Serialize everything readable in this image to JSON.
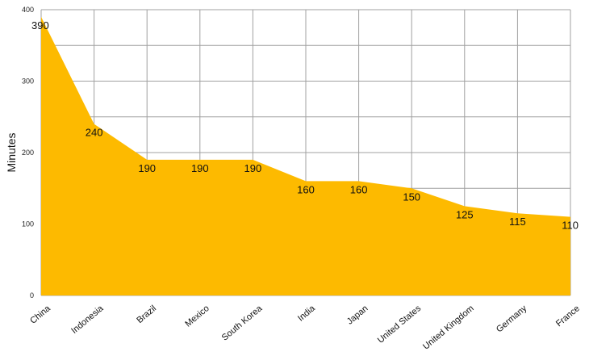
{
  "chart_data": {
    "type": "area",
    "categories": [
      "China",
      "Indonesia",
      "Brazil",
      "Mexico",
      "South Korea",
      "India",
      "Japan",
      "United States",
      "United Kingdom",
      "Germany",
      "France"
    ],
    "values": [
      390,
      240,
      190,
      190,
      190,
      160,
      160,
      150,
      125,
      115,
      110
    ],
    "data_labels": [
      "390",
      "240",
      "190",
      "190",
      "190",
      "160",
      "160",
      "150",
      "125",
      "115",
      "110"
    ],
    "title": "",
    "xlabel": "",
    "ylabel": "Minutes",
    "ylim": [
      0,
      400
    ],
    "yticks": [
      0,
      100,
      200,
      300,
      400
    ],
    "grid": true,
    "legend": "none",
    "fill_color": "#FDBA00",
    "grid_color": "#A0A0A0"
  }
}
